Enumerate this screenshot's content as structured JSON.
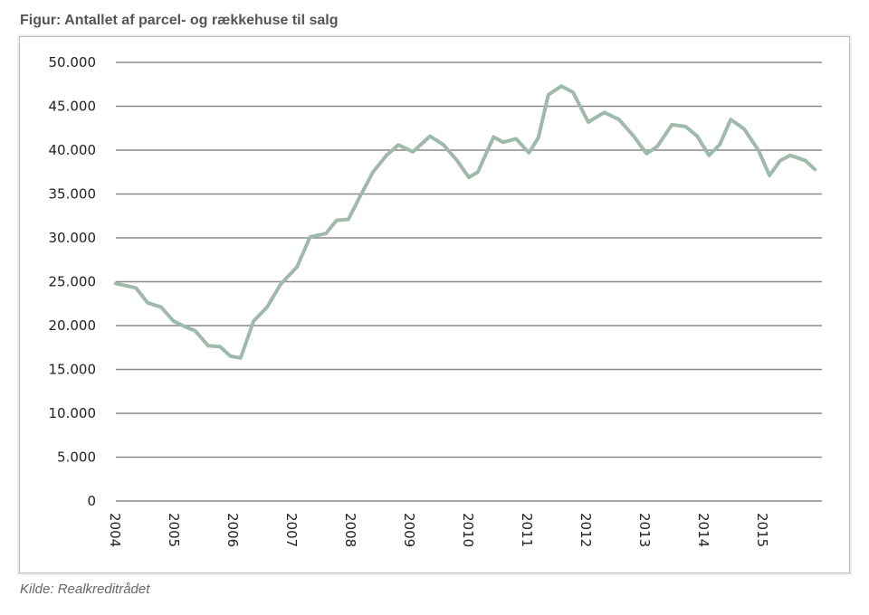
{
  "chart_data": {
    "type": "line",
    "title": "Figur: Antallet af parcel- og rækkehuse til salg",
    "source": "Kilde: Realkreditrådet",
    "xlabel": "",
    "ylabel": "",
    "ylim": [
      0,
      50000
    ],
    "xlim": [
      2004,
      2016
    ],
    "grid": true,
    "yticks": [
      0,
      5000,
      10000,
      15000,
      20000,
      25000,
      30000,
      35000,
      40000,
      45000,
      50000
    ],
    "ytick_labels": [
      "0",
      "5.000",
      "10.000",
      "15.000",
      "20.000",
      "25.000",
      "30.000",
      "35.000",
      "40.000",
      "45.000",
      "50.000"
    ],
    "xtick_labels": [
      "2004",
      "2005",
      "2006",
      "2007",
      "2008",
      "2009",
      "2010",
      "2011",
      "2012",
      "2013",
      "2014",
      "2015"
    ],
    "series": [
      {
        "name": "Parcel- og rækkehuse til salg",
        "color": "#9fb9ab",
        "x": [
          2004.0,
          2004.34,
          2004.54,
          2004.77,
          2004.98,
          2005.2,
          2005.35,
          2005.57,
          2005.77,
          2005.95,
          2006.12,
          2006.34,
          2006.57,
          2006.8,
          2007.08,
          2007.3,
          2007.57,
          2007.75,
          2007.95,
          2008.14,
          2008.37,
          2008.6,
          2008.8,
          2009.05,
          2009.34,
          2009.57,
          2009.8,
          2010.0,
          2010.15,
          2010.42,
          2010.58,
          2010.8,
          2011.02,
          2011.18,
          2011.35,
          2011.57,
          2011.77,
          2012.03,
          2012.3,
          2012.55,
          2012.8,
          2013.02,
          2013.2,
          2013.45,
          2013.68,
          2013.88,
          2014.08,
          2014.26,
          2014.45,
          2014.68,
          2014.92,
          2015.11,
          2015.29,
          2015.46,
          2015.72,
          2015.88
        ],
        "y": [
          24800,
          24300,
          22600,
          22100,
          20500,
          19800,
          19400,
          17700,
          17600,
          16500,
          16300,
          20500,
          22100,
          24700,
          26700,
          30100,
          30500,
          32000,
          32100,
          34600,
          37500,
          39400,
          40600,
          39800,
          41600,
          40600,
          38800,
          36900,
          37500,
          41500,
          40900,
          41300,
          39700,
          41400,
          46300,
          47300,
          46600,
          43200,
          44300,
          43500,
          41600,
          39600,
          40400,
          42900,
          42700,
          41600,
          39400,
          40600,
          43500,
          42400,
          40000,
          37100,
          38800,
          39400,
          38800,
          37800
        ]
      }
    ]
  }
}
